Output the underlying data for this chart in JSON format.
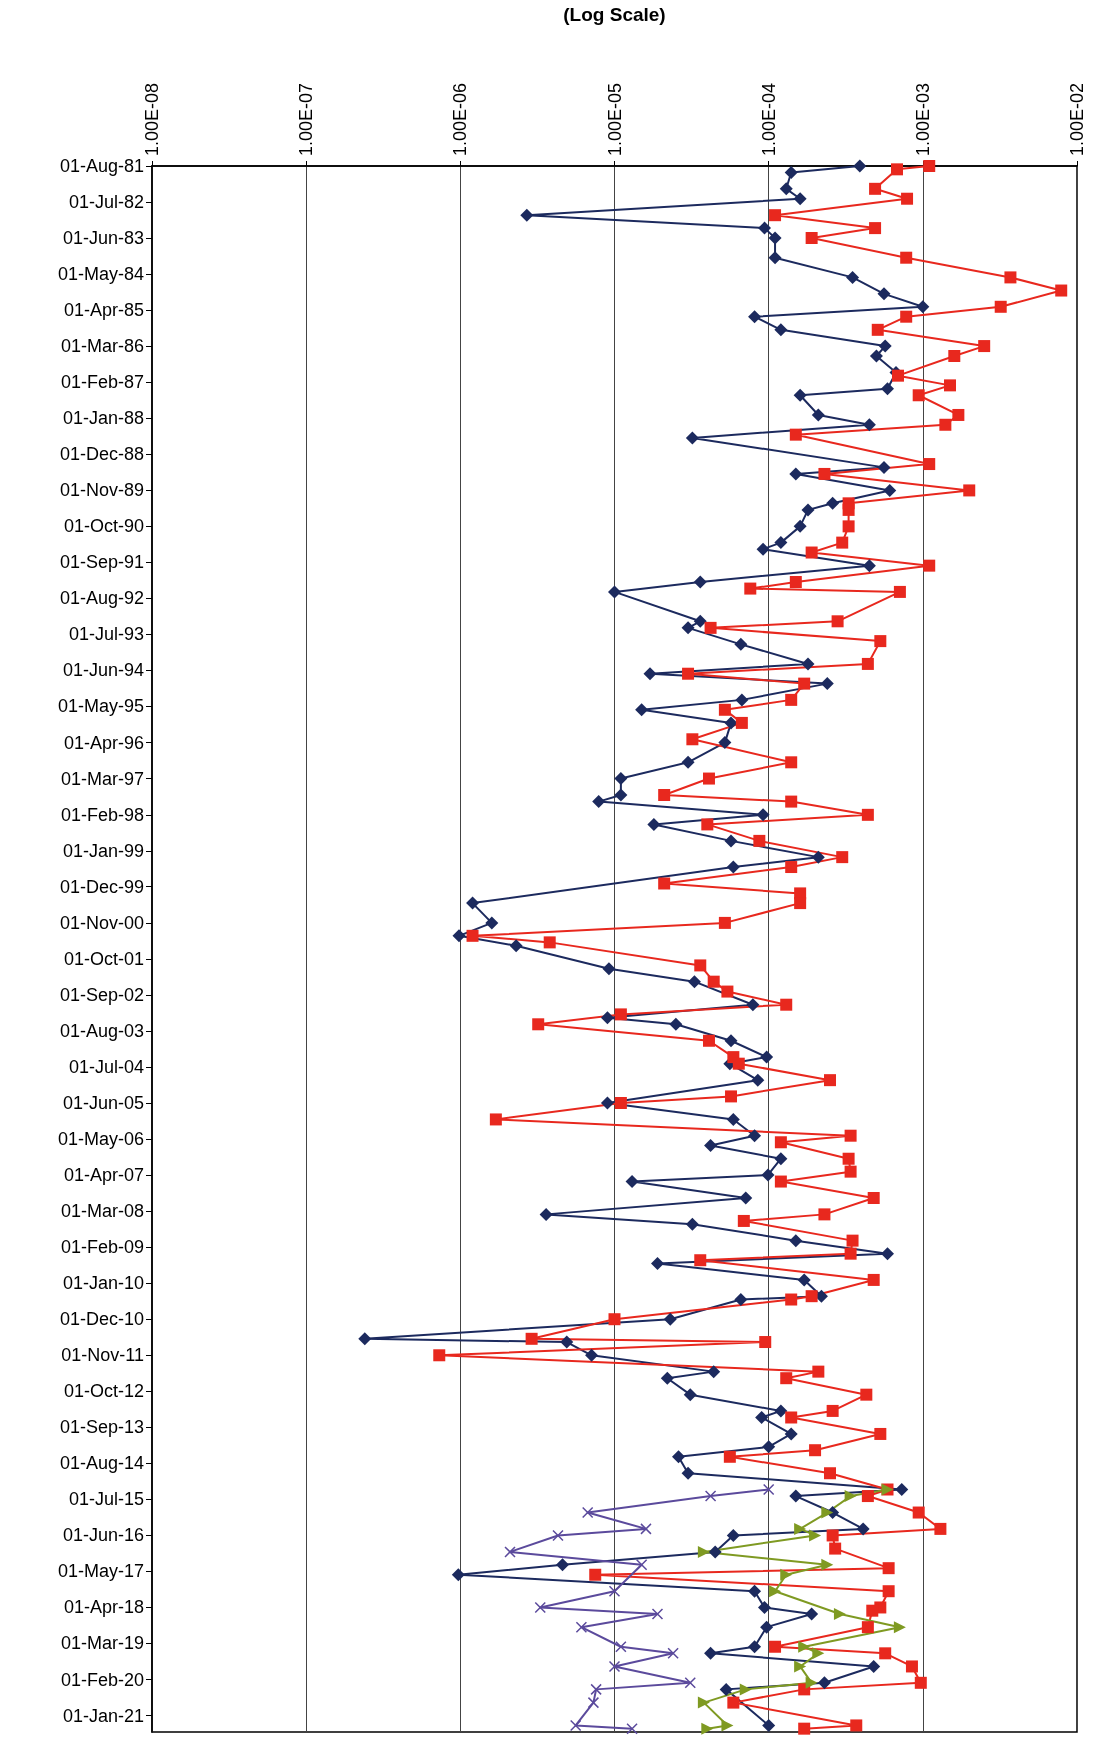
{
  "chart_data": {
    "type": "line",
    "orientation": "horizontal",
    "xlabel": "(Log Scale)",
    "log": "x",
    "grid": "x",
    "xlim": [
      1e-08,
      0.01
    ],
    "xticks": [
      {
        "value": 1e-08,
        "label": "1.00E-08"
      },
      {
        "value": 1e-07,
        "label": "1.00E-07"
      },
      {
        "value": 1e-06,
        "label": "1.00E-06"
      },
      {
        "value": 1e-05,
        "label": "1.00E-05"
      },
      {
        "value": 0.0001,
        "label": "1.00E-04"
      },
      {
        "value": 0.001,
        "label": "1.00E-03"
      },
      {
        "value": 0.01,
        "label": "1.00E-02"
      }
    ],
    "ylim": [
      "2021-06-01",
      "1981-08-01"
    ],
    "yticks": [
      {
        "value": "1981-08-01",
        "label": "01-Aug-81"
      },
      {
        "value": "1982-07-01",
        "label": "01-Jul-82"
      },
      {
        "value": "1983-06-01",
        "label": "01-Jun-83"
      },
      {
        "value": "1984-05-01",
        "label": "01-May-84"
      },
      {
        "value": "1985-04-01",
        "label": "01-Apr-85"
      },
      {
        "value": "1986-03-01",
        "label": "01-Mar-86"
      },
      {
        "value": "1987-02-01",
        "label": "01-Feb-87"
      },
      {
        "value": "1988-01-01",
        "label": "01-Jan-88"
      },
      {
        "value": "1988-12-01",
        "label": "01-Dec-88"
      },
      {
        "value": "1989-11-01",
        "label": "01-Nov-89"
      },
      {
        "value": "1990-10-01",
        "label": "01-Oct-90"
      },
      {
        "value": "1991-09-01",
        "label": "01-Sep-91"
      },
      {
        "value": "1992-08-01",
        "label": "01-Aug-92"
      },
      {
        "value": "1993-07-01",
        "label": "01-Jul-93"
      },
      {
        "value": "1994-06-01",
        "label": "01-Jun-94"
      },
      {
        "value": "1995-05-01",
        "label": "01-May-95"
      },
      {
        "value": "1996-04-01",
        "label": "01-Apr-96"
      },
      {
        "value": "1997-03-01",
        "label": "01-Mar-97"
      },
      {
        "value": "1998-02-01",
        "label": "01-Feb-98"
      },
      {
        "value": "1999-01-01",
        "label": "01-Jan-99"
      },
      {
        "value": "1999-12-01",
        "label": "01-Dec-99"
      },
      {
        "value": "2000-11-01",
        "label": "01-Nov-00"
      },
      {
        "value": "2001-10-01",
        "label": "01-Oct-01"
      },
      {
        "value": "2002-09-01",
        "label": "01-Sep-02"
      },
      {
        "value": "2003-08-01",
        "label": "01-Aug-03"
      },
      {
        "value": "2004-07-01",
        "label": "01-Jul-04"
      },
      {
        "value": "2005-06-01",
        "label": "01-Jun-05"
      },
      {
        "value": "2006-05-01",
        "label": "01-May-06"
      },
      {
        "value": "2007-04-01",
        "label": "01-Apr-07"
      },
      {
        "value": "2008-03-01",
        "label": "01-Mar-08"
      },
      {
        "value": "2009-02-01",
        "label": "01-Feb-09"
      },
      {
        "value": "2010-01-01",
        "label": "01-Jan-10"
      },
      {
        "value": "2010-12-01",
        "label": "01-Dec-10"
      },
      {
        "value": "2011-11-01",
        "label": "01-Nov-11"
      },
      {
        "value": "2012-10-01",
        "label": "01-Oct-12"
      },
      {
        "value": "2013-09-01",
        "label": "01-Sep-13"
      },
      {
        "value": "2014-08-01",
        "label": "01-Aug-14"
      },
      {
        "value": "2015-07-01",
        "label": "01-Jul-15"
      },
      {
        "value": "2016-06-01",
        "label": "01-Jun-16"
      },
      {
        "value": "2017-05-01",
        "label": "01-May-17"
      },
      {
        "value": "2018-04-01",
        "label": "01-Apr-18"
      },
      {
        "value": "2019-03-01",
        "label": "01-Mar-19"
      },
      {
        "value": "2020-02-01",
        "label": "01-Feb-20"
      },
      {
        "value": "2021-01-01",
        "label": "01-Jan-21"
      }
    ],
    "series": [
      {
        "color": "#1c2a5e",
        "marker": "diamond",
        "line_style": "solid",
        "x": [
          "1981-08",
          "1981-10",
          "1982-03",
          "1982-06",
          "1982-11",
          "1983-03",
          "1983-06",
          "1983-12",
          "1984-06",
          "1984-11",
          "1985-03",
          "1985-06",
          "1985-10",
          "1986-03",
          "1986-06",
          "1986-11",
          "1987-04",
          "1987-06",
          "1987-12",
          "1988-03",
          "1988-07",
          "1989-04",
          "1989-06",
          "1989-11",
          "1990-03",
          "1990-05",
          "1990-10",
          "1991-03",
          "1991-05",
          "1991-10",
          "1992-03",
          "1992-06",
          "1993-03",
          "1993-05",
          "1993-10",
          "1994-04",
          "1994-07",
          "1994-10",
          "1995-03",
          "1995-06",
          "1995-10",
          "1996-04",
          "1996-10",
          "1997-03",
          "1997-08",
          "1997-10",
          "1998-02",
          "1998-05",
          "1998-10",
          "1999-03",
          "1999-06",
          "2000-05",
          "2000-11",
          "2001-03",
          "2001-06",
          "2002-01",
          "2002-05",
          "2002-12",
          "2003-04",
          "2003-06",
          "2003-11",
          "2004-04",
          "2004-06",
          "2004-11",
          "2005-06",
          "2005-11",
          "2006-04",
          "2006-07",
          "2006-11",
          "2007-04",
          "2007-06",
          "2007-11",
          "2008-04",
          "2008-07",
          "2008-12",
          "2009-04",
          "2009-07",
          "2009-12",
          "2010-05",
          "2010-06",
          "2010-12",
          "2011-06",
          "2011-07",
          "2011-11",
          "2012-04",
          "2012-06",
          "2012-11",
          "2013-04",
          "2013-06",
          "2013-11",
          "2014-03",
          "2014-06",
          "2014-11",
          "2015-04",
          "2015-06",
          "2015-11",
          "2016-04",
          "2016-06",
          "2016-11",
          "2017-03",
          "2017-06",
          "2017-11",
          "2018-04",
          "2018-06",
          "2018-10",
          "2019-04",
          "2019-06",
          "2019-10",
          "2020-03",
          "2020-05",
          "2021-04"
        ],
        "values": [
          0.00039,
          0.00014,
          0.00013,
          0.00016,
          2.7e-06,
          9.4e-05,
          0.00011,
          0.00011,
          0.00035,
          0.00056,
          0.001,
          8.1e-05,
          0.00012,
          0.00057,
          0.0005,
          0.00067,
          0.00059,
          0.00016,
          0.00021,
          0.00045,
          3.2e-05,
          0.00056,
          0.00015,
          0.00061,
          0.00026,
          0.00018,
          0.00016,
          0.00012,
          9.2e-05,
          0.00045,
          3.6e-05,
          1e-05,
          3.6e-05,
          3e-05,
          6.6e-05,
          0.00018,
          1.7e-05,
          0.00024,
          6.7e-05,
          1.5e-05,
          5.7e-05,
          5.2e-05,
          3e-05,
          1.1e-05,
          1.1e-05,
          7.9e-06,
          9.2e-05,
          1.8e-05,
          5.7e-05,
          0.00021,
          5.9e-05,
          1.2e-06,
          1.6e-06,
          9.8e-07,
          2.3e-06,
          9.2e-06,
          3.3e-05,
          7.9e-05,
          9e-06,
          2.5e-05,
          5.7e-05,
          9.7e-05,
          5.6e-05,
          8.5e-05,
          9e-06,
          5.9e-05,
          8.1e-05,
          4.2e-05,
          0.00012,
          9.9e-05,
          1.3e-05,
          7.1e-05,
          3.6e-06,
          3.2e-05,
          0.00015,
          0.00059,
          1.9e-05,
          0.00017,
          0.00022,
          6.6e-05,
          2.3e-05,
          2.4e-07,
          4.9e-06,
          7.1e-06,
          4.4e-05,
          2.2e-05,
          3.1e-05,
          0.00012,
          9e-05,
          0.00014,
          0.0001,
          2.6e-05,
          3e-05,
          0.00073,
          0.00015,
          0.00026,
          0.00041,
          5.9e-05,
          4.5e-05,
          4.6e-06,
          9.7e-07,
          8.1e-05,
          9.4e-05,
          0.00019,
          9.7e-05,
          8.1e-05,
          4.2e-05,
          0.00048,
          0.00023,
          5.3e-05,
          0.0001
        ]
      },
      {
        "color": "#e8281e",
        "marker": "square",
        "line_style": "solid",
        "x": [
          "1981-08",
          "1981-09",
          "1982-03",
          "1982-06",
          "1982-11",
          "1983-03",
          "1983-06",
          "1983-12",
          "1984-06",
          "1984-10",
          "1985-03",
          "1985-06",
          "1985-10",
          "1986-03",
          "1986-06",
          "1986-12",
          "1987-03",
          "1987-06",
          "1987-12",
          "1988-03",
          "1988-06",
          "1989-03",
          "1989-06",
          "1989-11",
          "1990-03",
          "1990-05",
          "1990-10",
          "1991-03",
          "1991-06",
          "1991-10",
          "1992-03",
          "1992-05",
          "1992-06",
          "1993-03",
          "1993-05",
          "1993-09",
          "1994-04",
          "1994-07",
          "1994-10",
          "1995-03",
          "1995-06",
          "1995-10",
          "1996-03",
          "1996-10",
          "1997-03",
          "1997-08",
          "1997-10",
          "1998-02",
          "1998-05",
          "1998-10",
          "1999-03",
          "1999-06",
          "1999-11",
          "2000-02",
          "2000-05",
          "2000-11",
          "2001-03",
          "2001-05",
          "2001-12",
          "2002-05",
          "2002-08",
          "2002-12",
          "2003-03",
          "2003-06",
          "2003-11",
          "2004-04",
          "2004-06",
          "2004-11",
          "2005-04",
          "2005-06",
          "2005-11",
          "2006-04",
          "2006-06",
          "2006-11",
          "2007-03",
          "2007-06",
          "2007-11",
          "2008-04",
          "2008-06",
          "2008-12",
          "2009-04",
          "2009-06",
          "2009-12",
          "2010-05",
          "2010-06",
          "2010-12",
          "2011-06",
          "2011-07",
          "2011-11",
          "2012-04",
          "2012-06",
          "2012-11",
          "2013-04",
          "2013-06",
          "2013-11",
          "2014-04",
          "2014-06",
          "2014-11",
          "2015-04",
          "2015-06",
          "2015-11",
          "2016-04",
          "2016-06",
          "2016-10",
          "2017-04",
          "2017-06",
          "2017-11",
          "2018-04",
          "2018-05",
          "2018-10",
          "2019-04",
          "2019-06",
          "2019-10",
          "2020-03",
          "2020-05",
          "2020-09",
          "2021-04",
          "2021-05"
        ],
        "values": [
          0.0011,
          0.00068,
          0.00049,
          0.00079,
          0.00011,
          0.00049,
          0.00019,
          0.00078,
          0.0037,
          0.0079,
          0.0032,
          0.00078,
          0.00051,
          0.0025,
          0.0016,
          0.00069,
          0.0015,
          0.00094,
          0.0017,
          0.0014,
          0.00015,
          0.0011,
          0.00023,
          0.002,
          0.00033,
          0.00033,
          0.00033,
          0.0003,
          0.00019,
          0.0011,
          0.00015,
          7.6e-05,
          0.00071,
          0.00028,
          4.2e-05,
          0.00053,
          0.00044,
          3e-05,
          0.00017,
          0.00014,
          5.2e-05,
          6.7e-05,
          3.2e-05,
          0.00014,
          4.1e-05,
          2.1e-05,
          0.00014,
          0.00044,
          4e-05,
          8.7e-05,
          0.0003,
          0.00014,
          2.1e-05,
          0.00016,
          0.00016,
          5.2e-05,
          1.2e-06,
          3.8e-06,
          3.6e-05,
          4.4e-05,
          5.4e-05,
          0.00013,
          1.1e-05,
          3.2e-06,
          4.1e-05,
          5.9e-05,
          6.4e-05,
          0.00025,
          5.7e-05,
          1.1e-05,
          1.7e-06,
          0.00034,
          0.00012,
          0.00033,
          0.00034,
          0.00012,
          0.00048,
          0.00023,
          6.9e-05,
          0.00035,
          0.00034,
          3.6e-05,
          0.00048,
          0.00019,
          0.00014,
          1e-05,
          2.9e-06,
          9.5e-05,
          7.3e-07,
          0.00021,
          0.00013,
          0.00043,
          0.00026,
          0.00014,
          0.00053,
          0.0002,
          5.6e-05,
          0.00025,
          0.00059,
          0.00044,
          0.00094,
          0.0013,
          0.00026,
          0.00027,
          0.0006,
          7.5e-06,
          0.0006,
          0.00053,
          0.00047,
          0.00044,
          0.00011,
          0.00057,
          0.00085,
          0.00097,
          0.00017,
          5.9e-05,
          0.00037,
          0.00017
        ]
      },
      {
        "color": "#5b4a9c",
        "marker": "cross",
        "line_style": "solid",
        "x": [
          "2015-04",
          "2015-06",
          "2015-11",
          "2016-04",
          "2016-06",
          "2016-11",
          "2017-03",
          "2017-11",
          "2018-04",
          "2018-06",
          "2018-10",
          "2019-04",
          "2019-06",
          "2019-10",
          "2020-03",
          "2020-05",
          "2020-09",
          "2021-04",
          "2021-05"
        ],
        "values": [
          0.0001,
          4.2e-05,
          6.7e-06,
          1.6e-05,
          4.3e-06,
          2.1e-06,
          1.5e-05,
          1e-05,
          3.3e-06,
          1.9e-05,
          6.1e-06,
          1.1e-05,
          2.4e-05,
          1e-05,
          3.1e-05,
          7.6e-06,
          7.3e-06,
          5.6e-06,
          1.3e-05
        ]
      },
      {
        "color": "#7f9a22",
        "marker": "triangle",
        "line_style": "solid",
        "x": [
          "2015-04",
          "2015-06",
          "2015-11",
          "2016-04",
          "2016-06",
          "2016-11",
          "2017-03",
          "2017-06",
          "2017-11",
          "2018-06",
          "2018-10",
          "2019-04",
          "2019-06",
          "2019-10",
          "2020-03",
          "2020-05",
          "2020-09",
          "2021-04",
          "2021-05"
        ],
        "values": [
          0.00059,
          0.00034,
          0.00024,
          0.00016,
          0.0002,
          3.8e-05,
          0.00024,
          0.00013,
          0.00011,
          0.00029,
          0.00071,
          0.00017,
          0.00021,
          0.00016,
          0.00019,
          7.1e-05,
          3.8e-05,
          5.4e-05,
          4e-05
        ]
      }
    ]
  }
}
